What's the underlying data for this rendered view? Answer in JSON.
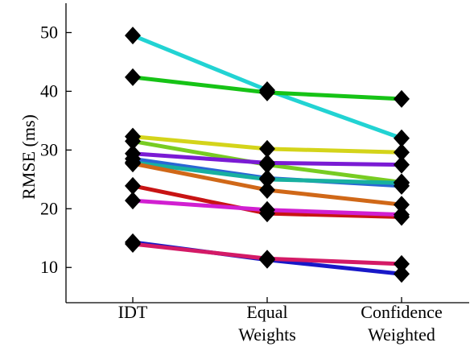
{
  "chart_data": {
    "type": "line",
    "ylabel": "RMSE (ms)",
    "xlabel": "",
    "categories": [
      [
        "IDT"
      ],
      [
        "Equal",
        "Weights"
      ],
      [
        "Confidence",
        "Weighted"
      ]
    ],
    "ylim": [
      4,
      55
    ],
    "yticks": [
      10,
      20,
      30,
      40,
      50
    ],
    "grid": false,
    "marker": "diamond",
    "series": [
      {
        "color": "#22d3d3",
        "values": [
          49.5,
          40.2,
          32.0
        ]
      },
      {
        "color": "#16c316",
        "values": [
          42.4,
          39.8,
          38.7
        ]
      },
      {
        "color": "#d4d41a",
        "values": [
          32.3,
          30.2,
          29.6
        ]
      },
      {
        "color": "#77cc22",
        "values": [
          31.5,
          27.5,
          24.5
        ]
      },
      {
        "color": "#7a1bd4",
        "values": [
          29.4,
          27.8,
          27.5
        ]
      },
      {
        "color": "#2a66d4",
        "values": [
          28.5,
          25.2,
          23.9
        ]
      },
      {
        "color": "#18b0a0",
        "values": [
          27.9,
          25.0,
          24.4
        ]
      },
      {
        "color": "#d06818",
        "values": [
          27.7,
          23.2,
          20.7
        ]
      },
      {
        "color": "#c81414",
        "values": [
          23.9,
          19.2,
          18.6
        ]
      },
      {
        "color": "#d11fd1",
        "values": [
          21.4,
          19.8,
          19.0
        ]
      },
      {
        "color": "#1818c8",
        "values": [
          14.3,
          11.3,
          8.9
        ]
      },
      {
        "color": "#d41a66",
        "values": [
          14.0,
          11.5,
          10.6
        ]
      }
    ]
  }
}
